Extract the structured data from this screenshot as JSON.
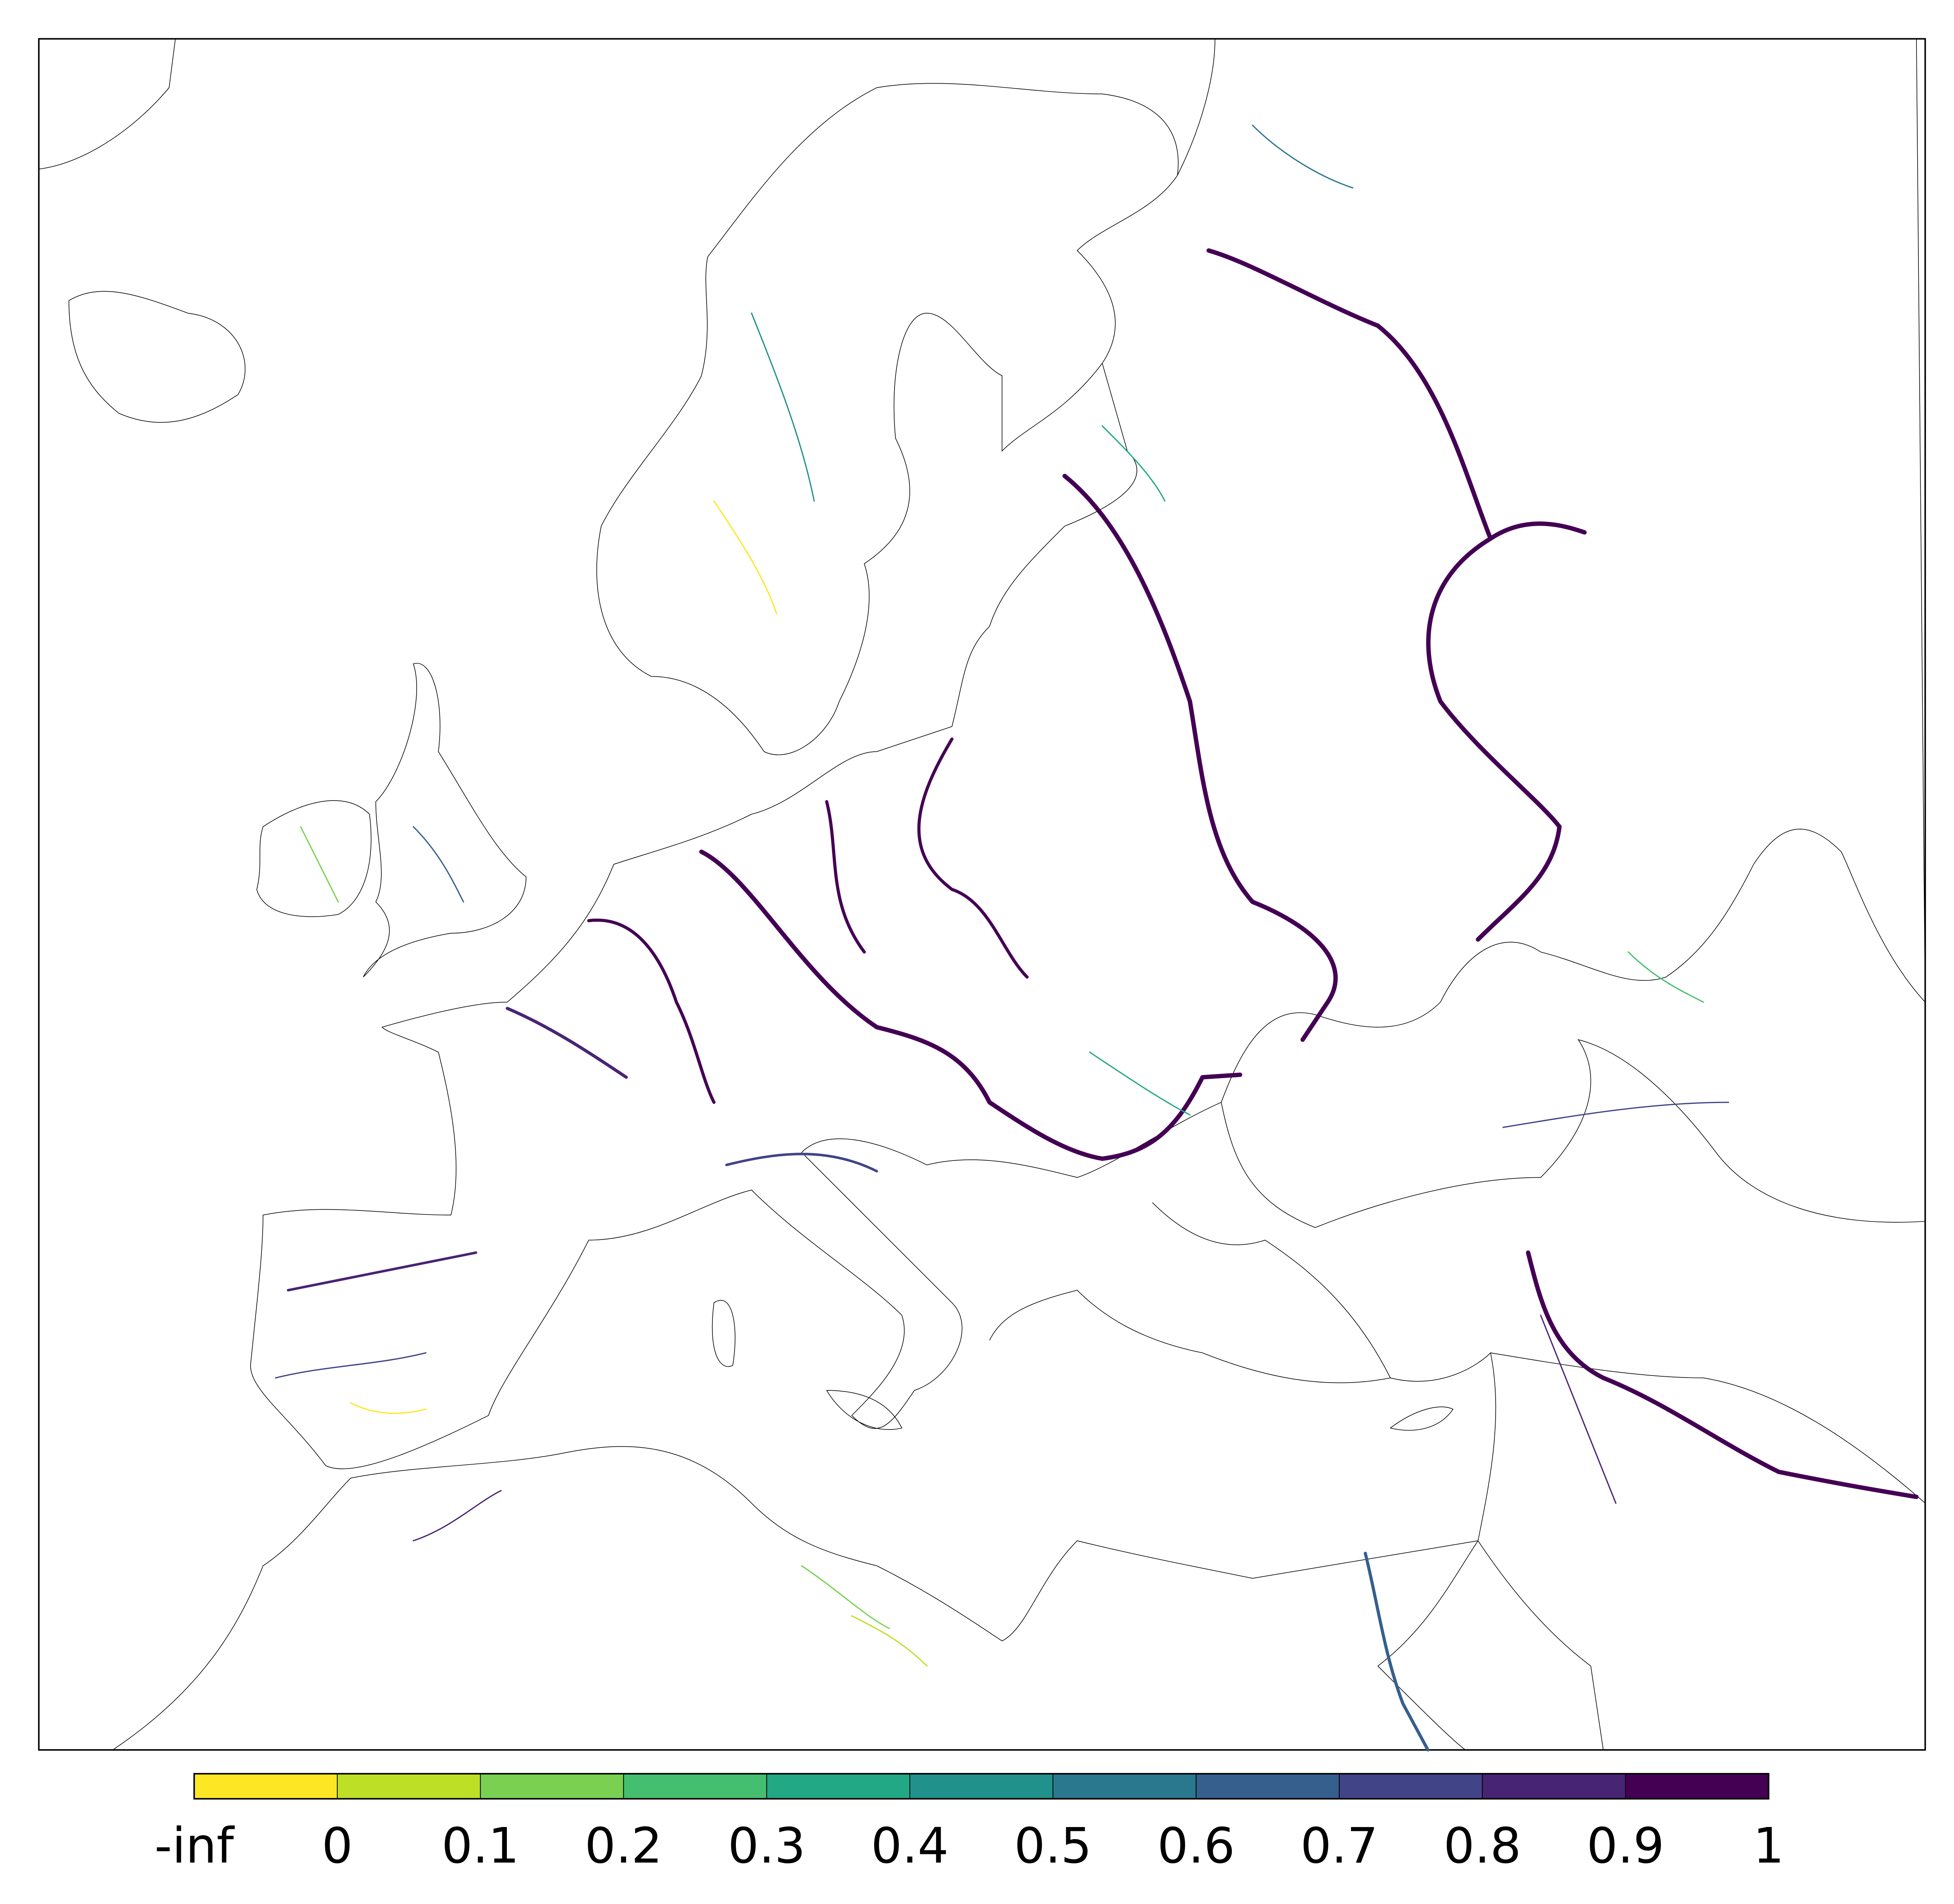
{
  "map": {
    "coastline_color": "#000000",
    "river_value_scale": "viridis"
  },
  "colorbar": {
    "tick_labels": [
      "-inf",
      "0",
      "0.1",
      "0.2",
      "0.3",
      "0.4",
      "0.5",
      "0.6",
      "0.7",
      "0.8",
      "0.9",
      "1"
    ],
    "colors": [
      "#fde725",
      "#bddf26",
      "#7ad151",
      "#44bf70",
      "#22a884",
      "#21918c",
      "#2a788e",
      "#355f8d",
      "#414487",
      "#482475",
      "#440154"
    ]
  }
}
